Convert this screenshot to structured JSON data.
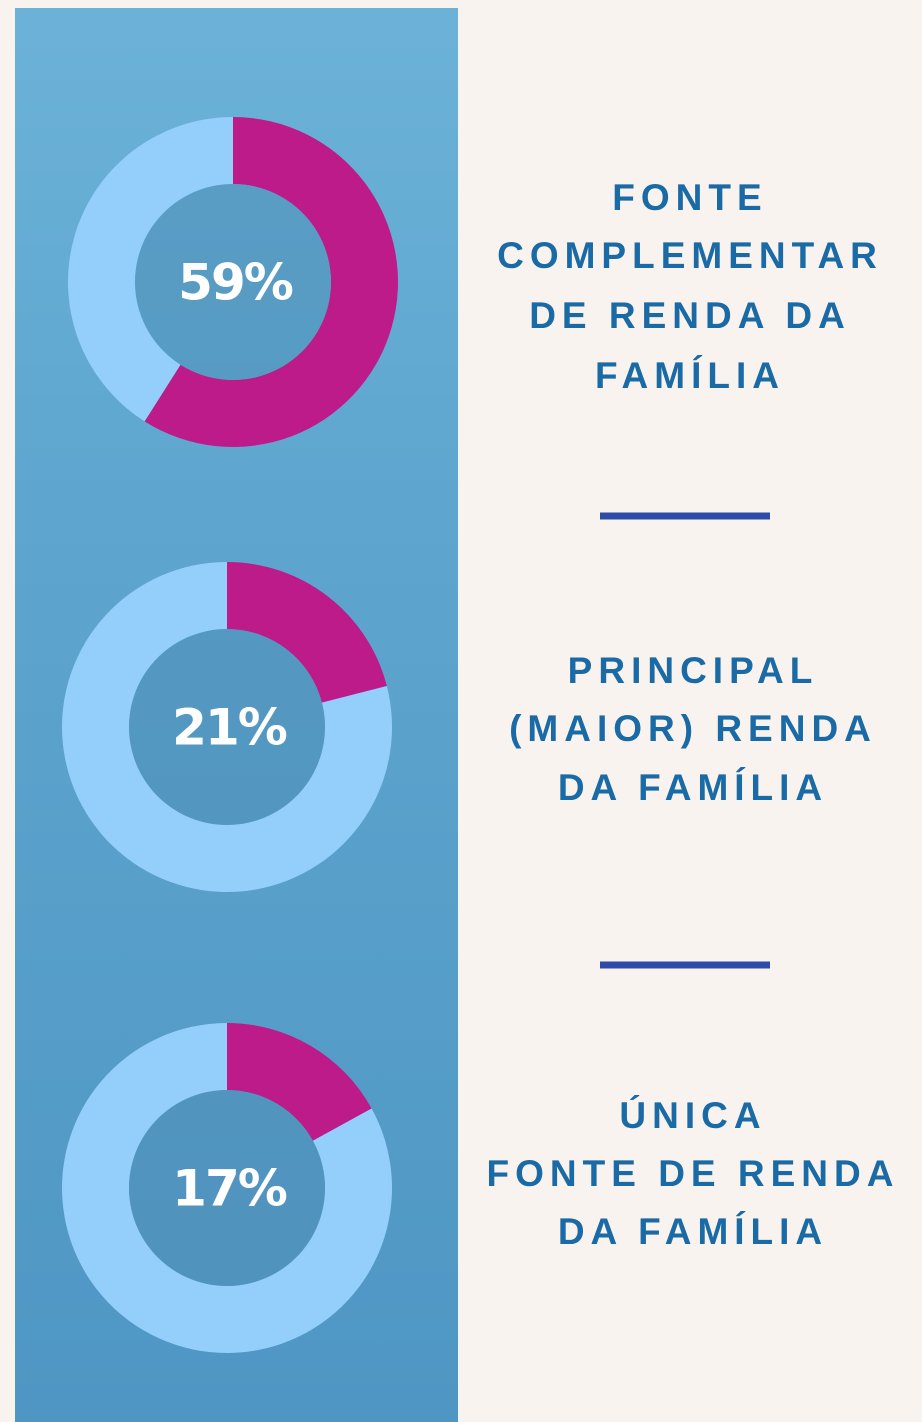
{
  "chart_data": [
    {
      "type": "donut",
      "title": [
        "FONTE",
        "COMPLEMENTAR",
        "DE RENDA DA",
        "FAMÍLIA"
      ],
      "values": [
        59,
        41
      ],
      "value_labels": [
        "59%",
        null
      ],
      "colors": [
        "#bd1a8a",
        "#94cffc"
      ]
    },
    {
      "type": "donut",
      "title": [
        "PRINCIPAL",
        "(MAIOR) RENDA",
        "DA FAMÍLIA"
      ],
      "values": [
        21,
        79
      ],
      "value_labels": [
        "21%",
        null
      ],
      "colors": [
        "#bd1a8a",
        "#94cffc"
      ]
    },
    {
      "type": "donut",
      "title": [
        "ÚNICA",
        "FONTE DE RENDA",
        "DA FAMÍLIA"
      ],
      "values": [
        17,
        83
      ],
      "value_labels": [
        "17%",
        null
      ],
      "colors": [
        "#bd1a8a",
        "#94cffc"
      ]
    }
  ]
}
